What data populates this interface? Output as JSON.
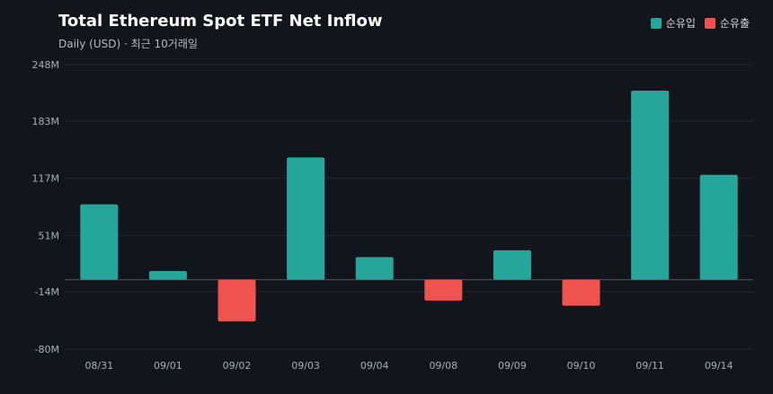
{
  "title": "Total Ethereum Spot ETF Net Inflow",
  "subtitle": "Daily (USD) · 최근 10거래일",
  "legend": {
    "inflow_label": "순유입",
    "outflow_label": "순유출",
    "inflow_color": "#26a69a",
    "outflow_color": "#ef5350"
  },
  "colors": {
    "background": "#12161c",
    "grid": "#232830",
    "zero_line": "#4a5059",
    "text": "#a8aeb7"
  },
  "chart_data": {
    "type": "bar",
    "categories": [
      "08/31",
      "09/01",
      "09/02",
      "09/03",
      "09/04",
      "09/08",
      "09/09",
      "09/10",
      "09/11",
      "09/14"
    ],
    "values": [
      87,
      10,
      -48,
      141,
      26,
      -24,
      34,
      -30,
      218,
      121
    ],
    "unit": "M USD",
    "ylim": [
      -80,
      248
    ],
    "yticks": [
      -80,
      -14,
      51,
      117,
      183,
      248
    ],
    "ytick_labels": [
      "-80M",
      "-14M",
      "51M",
      "117M",
      "183M",
      "248M"
    ],
    "grid": true
  }
}
